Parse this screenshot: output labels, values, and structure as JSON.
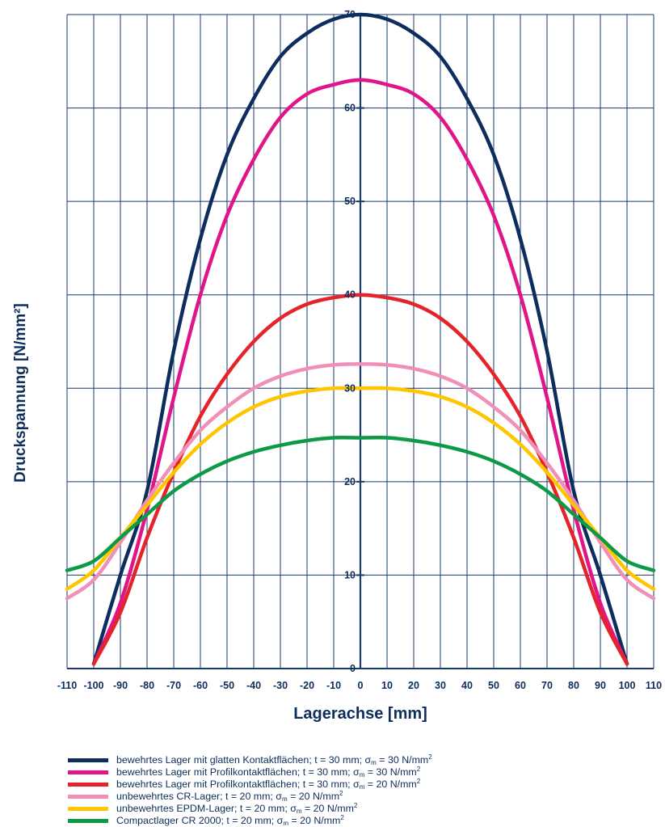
{
  "chart_data": {
    "type": "line",
    "xlabel": "Lagerachse [mm]",
    "ylabel": "Druckspannung [N/mm²]",
    "xlim": [
      -110,
      110
    ],
    "ylim": [
      0,
      70
    ],
    "x_ticks": [
      "-110",
      "-100",
      "-90",
      "-80",
      "-70",
      "-60",
      "-50",
      "-40",
      "-30",
      "-20",
      "-10",
      "0",
      "10",
      "20",
      "30",
      "40",
      "50",
      "60",
      "70",
      "80",
      "90",
      "100",
      "110"
    ],
    "y_ticks": [
      "0",
      "10",
      "20",
      "30",
      "40",
      "50",
      "60",
      "70"
    ],
    "grid": true,
    "legend_position": "bottom",
    "series": [
      {
        "name": "bewehrtes Lager mit glatten Kontaktflächen; t = 30 mm; σm = 30 N/mm²",
        "label": {
          "main": "bewehrtes Lager mit glatten Kontaktflächen; t = 30 mm; σ",
          "sub": "m",
          "tail": " = 30 N/mm",
          "sup": "2"
        },
        "color": "#0d2d5e",
        "x": [
          -100,
          -90,
          -80,
          -70,
          -60,
          -50,
          -40,
          -30,
          -20,
          -10,
          0,
          10,
          20,
          30,
          40,
          50,
          60,
          70,
          80,
          90,
          100
        ],
        "y": [
          0.5,
          10,
          19,
          34,
          46,
          55,
          61,
          65.5,
          68,
          69.5,
          70,
          69.5,
          68,
          65.5,
          61,
          55,
          46,
          34,
          19,
          10,
          0.5
        ]
      },
      {
        "name": "bewehrtes Lager mit Profilkontaktflächen; t = 30 mm; σm = 30 N/mm²",
        "label": {
          "main": "bewehrtes Lager mit Profilkontaktflächen; t = 30 mm; σ",
          "sub": "m",
          "tail": " = 30 N/mm",
          "sup": "2"
        },
        "color": "#e0158a",
        "x": [
          -100,
          -90,
          -80,
          -70,
          -60,
          -50,
          -40,
          -30,
          -20,
          -10,
          0,
          10,
          20,
          30,
          40,
          50,
          60,
          70,
          80,
          90,
          100
        ],
        "y": [
          0.5,
          7,
          17,
          29,
          40,
          48.5,
          54.5,
          59,
          61.5,
          62.5,
          63,
          62.5,
          61.5,
          59,
          54.5,
          48.5,
          40,
          29,
          17,
          7,
          0.5
        ]
      },
      {
        "name": "bewehrtes Lager mit Profilkontaktflächen; t = 30 mm; σm = 20 N/mm²",
        "label": {
          "main": "bewehrtes Lager mit Profilkontaktflächen; t = 30 mm; σ",
          "sub": "m",
          "tail": " = 20 N/mm",
          "sup": "2"
        },
        "color": "#e5232a",
        "x": [
          -100,
          -90,
          -80,
          -70,
          -60,
          -50,
          -40,
          -30,
          -20,
          -10,
          0,
          10,
          20,
          30,
          40,
          50,
          60,
          70,
          80,
          90,
          100
        ],
        "y": [
          0.5,
          6,
          14,
          21,
          27,
          31.5,
          35,
          37.5,
          39,
          39.7,
          40,
          39.7,
          39,
          37.5,
          35,
          31.5,
          27,
          21,
          14,
          6,
          0.5
        ]
      },
      {
        "name": "unbewehrtes CR-Lager; t = 20 mm; σm = 20 N/mm²",
        "label": {
          "main": "unbewehrtes CR-Lager; t = 20 mm; σ",
          "sub": "m",
          "tail": " = 20 N/mm",
          "sup": "2"
        },
        "color": "#f08fb8",
        "x": [
          -110,
          -100,
          -90,
          -80,
          -70,
          -60,
          -50,
          -40,
          -30,
          -20,
          -10,
          0,
          10,
          20,
          30,
          40,
          50,
          60,
          70,
          80,
          90,
          100,
          110
        ],
        "y": [
          7.5,
          9.5,
          13.5,
          18,
          22,
          25.5,
          28,
          30,
          31.3,
          32.1,
          32.5,
          32.6,
          32.5,
          32.1,
          31.3,
          30,
          28,
          25.5,
          22,
          18,
          13.5,
          9.5,
          7.5
        ]
      },
      {
        "name": "unbewehrtes EPDM-Lager; t = 20 mm; σm = 20 N/mm²",
        "label": {
          "main": "unbewehrtes EPDM-Lager; t = 20 mm; σ",
          "sub": "m",
          "tail": " = 20 N/mm",
          "sup": "2"
        },
        "color": "#ffc600",
        "x": [
          -110,
          -100,
          -90,
          -80,
          -70,
          -60,
          -50,
          -40,
          -30,
          -20,
          -10,
          0,
          10,
          20,
          30,
          40,
          50,
          60,
          70,
          80,
          90,
          100,
          110
        ],
        "y": [
          8.5,
          10.5,
          14,
          17.5,
          21,
          24,
          26.3,
          28,
          29.1,
          29.7,
          30,
          30,
          30,
          29.7,
          29.1,
          28,
          26.3,
          24,
          21,
          17.5,
          14,
          10.5,
          8.5
        ]
      },
      {
        "name": "Compactlager CR 2000; t = 20 mm; σm = 20 N/mm²",
        "label": {
          "main": "Compactlager CR 2000; t = 20 mm; σ",
          "sub": "m",
          "tail": " = 20 N/mm",
          "sup": "2"
        },
        "color": "#0d9a46",
        "x": [
          -110,
          -100,
          -90,
          -80,
          -70,
          -60,
          -50,
          -40,
          -30,
          -20,
          -10,
          0,
          10,
          20,
          30,
          40,
          50,
          60,
          70,
          80,
          90,
          100,
          110
        ],
        "y": [
          10.5,
          11.5,
          14,
          16.5,
          19,
          20.8,
          22.2,
          23.2,
          23.9,
          24.4,
          24.7,
          24.7,
          24.7,
          24.4,
          23.9,
          23.2,
          22.2,
          20.8,
          19,
          16.5,
          14,
          11.5,
          10.5
        ]
      }
    ]
  }
}
